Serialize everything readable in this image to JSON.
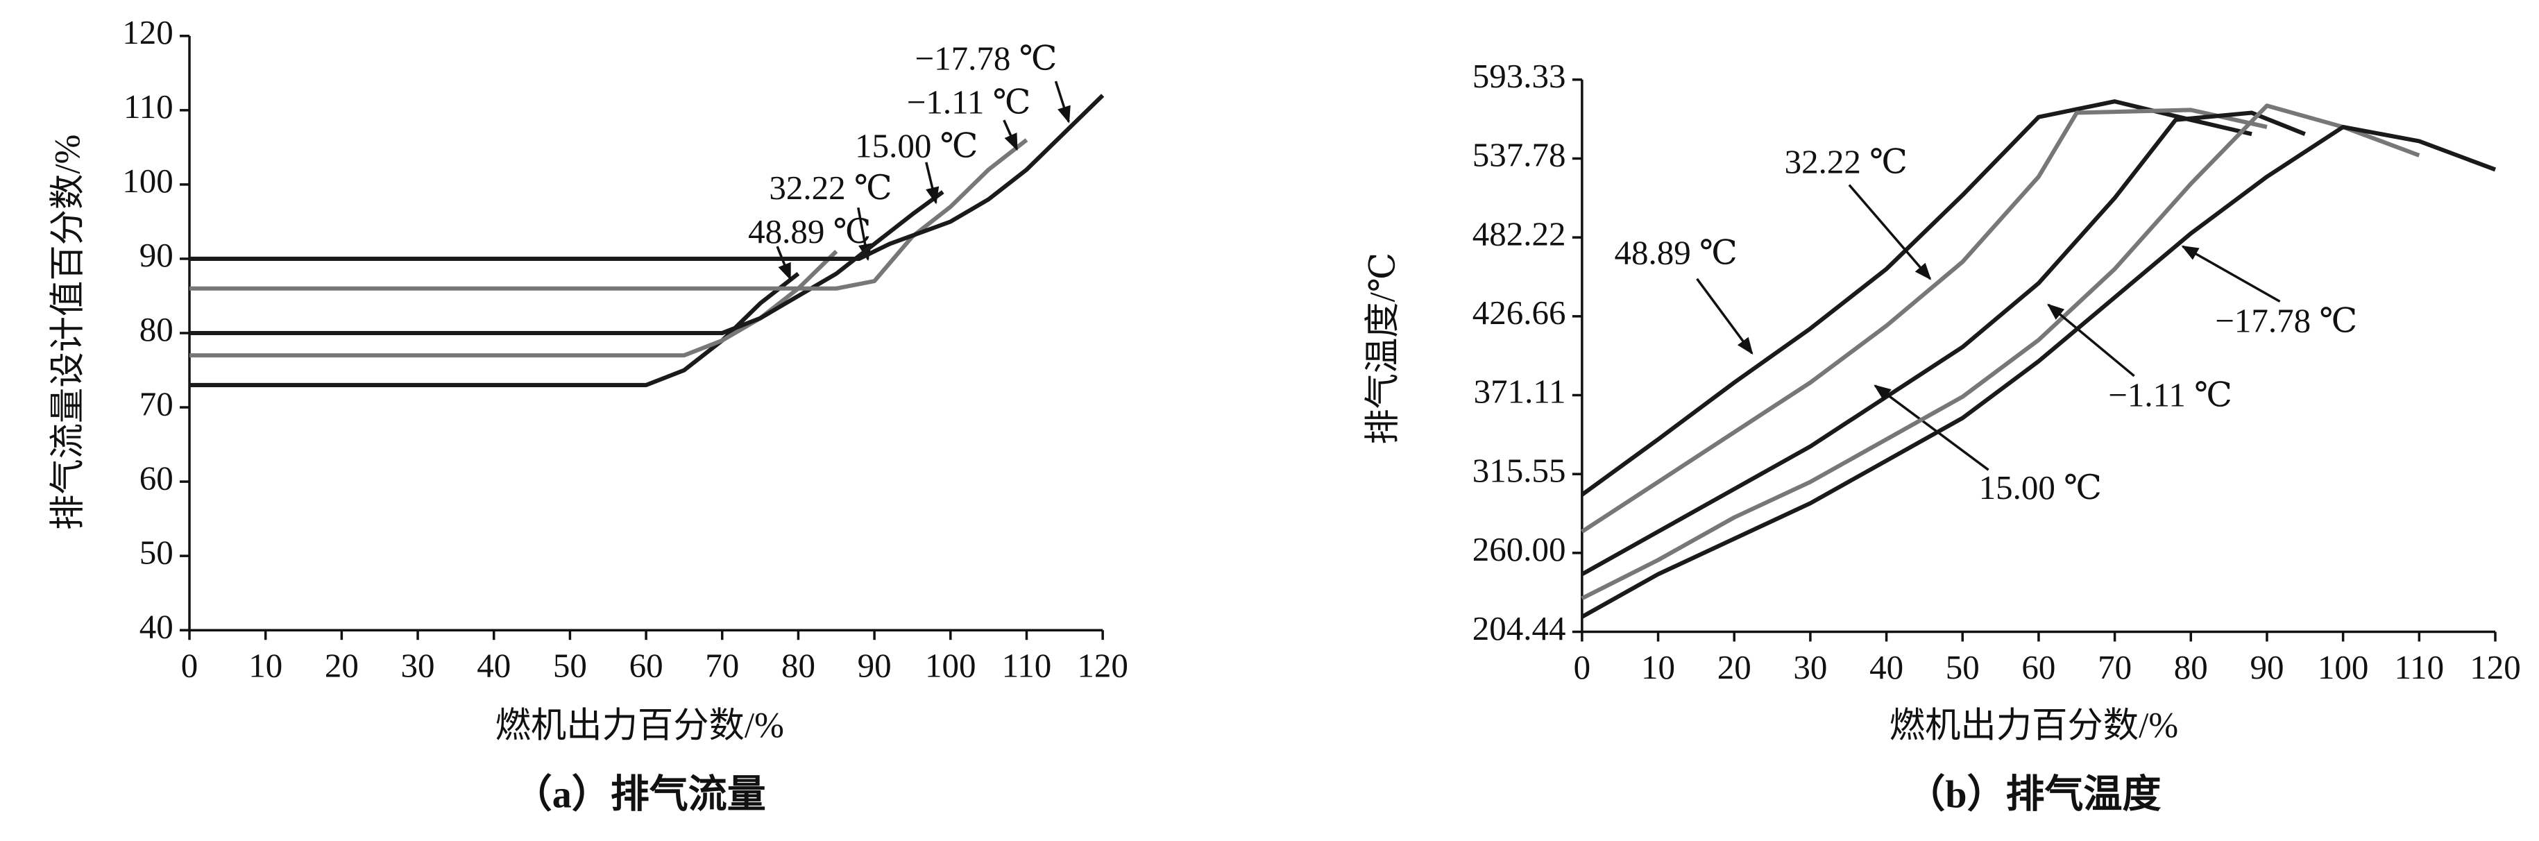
{
  "chart_data": [
    {
      "type": "line",
      "title": "（a）排气流量",
      "x_label": "燃机出力百分数/%",
      "y_label": "排气流量设计值百分数/%",
      "xlim": [
        0,
        120
      ],
      "xticks": [
        0,
        10,
        20,
        30,
        40,
        50,
        60,
        70,
        80,
        90,
        100,
        110,
        120
      ],
      "ylim": [
        40,
        120
      ],
      "yticks": [
        40,
        50,
        60,
        70,
        80,
        90,
        100,
        110,
        120
      ],
      "series": [
        {
          "name": "48.89 ℃",
          "color": "#1a1a1a",
          "x": [
            0,
            55,
            60,
            65,
            70,
            75,
            80
          ],
          "values": [
            73,
            73,
            73,
            75,
            79,
            84,
            88
          ]
        },
        {
          "name": "32.22 ℃",
          "color": "#777777",
          "x": [
            0,
            65,
            70,
            75,
            80,
            85
          ],
          "values": [
            77,
            77,
            79,
            82,
            86,
            91
          ]
        },
        {
          "name": "15.00 ℃",
          "color": "#1a1a1a",
          "x": [
            0,
            70,
            75,
            80,
            85,
            90,
            95,
            99
          ],
          "values": [
            80,
            80,
            82,
            85,
            88,
            92,
            96,
            99
          ]
        },
        {
          "name": "−1.11 ℃",
          "color": "#777777",
          "x": [
            0,
            85,
            90,
            95,
            100,
            105,
            110
          ],
          "values": [
            86,
            86,
            87,
            93,
            97,
            102,
            106
          ]
        },
        {
          "name": "−17.78 ℃",
          "color": "#1a1a1a",
          "x": [
            0,
            88,
            92,
            100,
            105,
            110,
            115,
            120
          ],
          "values": [
            90,
            90,
            92,
            95,
            98,
            102,
            107,
            112
          ]
        }
      ]
    },
    {
      "type": "line",
      "title": "（b）排气温度",
      "x_label": "燃机出力百分数/%",
      "y_label": "排气温度/℃",
      "xlim": [
        0,
        120
      ],
      "xticks": [
        0,
        10,
        20,
        30,
        40,
        50,
        60,
        70,
        80,
        90,
        100,
        110,
        120
      ],
      "ylim": [
        204.44,
        593.33
      ],
      "yticks": [
        204.44,
        {
          "value": 260,
          "label": "260.00"
        },
        315.55,
        371.11,
        426.66,
        482.22,
        537.78,
        593.33
      ],
      "series": [
        {
          "name": "48.89 ℃",
          "color": "#1a1a1a",
          "x": [
            0,
            10,
            20,
            30,
            40,
            50,
            60,
            70,
            80,
            88
          ],
          "values": [
            301,
            340,
            380,
            418,
            460,
            512,
            567,
            578,
            565,
            555
          ]
        },
        {
          "name": "32.22 ℃",
          "color": "#777777",
          "x": [
            0,
            10,
            20,
            30,
            40,
            50,
            60,
            65,
            80,
            90
          ],
          "values": [
            275,
            310,
            345,
            380,
            420,
            465,
            525,
            570,
            572,
            560
          ]
        },
        {
          "name": "15.00 ℃",
          "color": "#1a1a1a",
          "x": [
            0,
            10,
            20,
            30,
            40,
            50,
            60,
            70,
            78,
            88,
            95
          ],
          "values": [
            245,
            275,
            305,
            335,
            370,
            405,
            450,
            510,
            565,
            570,
            555
          ]
        },
        {
          "name": "−1.11 ℃",
          "color": "#777777",
          "x": [
            0,
            10,
            20,
            30,
            40,
            50,
            60,
            70,
            80,
            90,
            100,
            110
          ],
          "values": [
            228,
            255,
            285,
            310,
            340,
            370,
            410,
            460,
            520,
            575,
            560,
            540
          ]
        },
        {
          "name": "−17.78 ℃",
          "color": "#1a1a1a",
          "x": [
            0,
            10,
            20,
            30,
            40,
            50,
            60,
            70,
            80,
            90,
            100,
            110,
            120
          ],
          "values": [
            215,
            245,
            270,
            295,
            325,
            355,
            395,
            440,
            485,
            525,
            560,
            550,
            530
          ]
        }
      ]
    }
  ]
}
